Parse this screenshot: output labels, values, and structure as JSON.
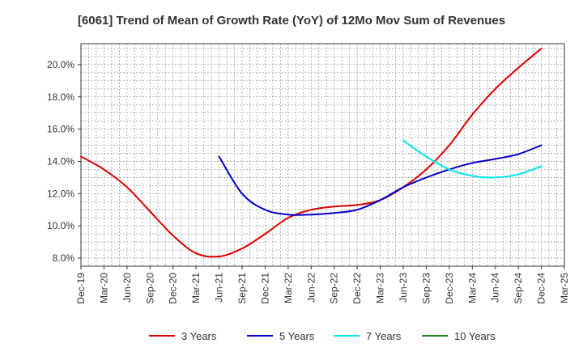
{
  "chart_data": {
    "type": "line",
    "title": "[6061]  Trend of Mean of Growth Rate (YoY) of 12Mo Mov Sum of Revenues",
    "xlabel": "",
    "ylabel": "",
    "ylim": [
      7.5,
      21.3
    ],
    "y_ticks": [
      8,
      10,
      12,
      14,
      16,
      18,
      20
    ],
    "y_tick_labels": [
      "8.0%",
      "10.0%",
      "12.0%",
      "14.0%",
      "16.0%",
      "18.0%",
      "20.0%"
    ],
    "x_tick_labels": [
      "Dec-19",
      "Mar-20",
      "Jun-20",
      "Sep-20",
      "Dec-20",
      "Mar-21",
      "Jun-21",
      "Sep-21",
      "Dec-21",
      "Mar-22",
      "Jun-22",
      "Sep-22",
      "Dec-22",
      "Mar-23",
      "Jun-23",
      "Sep-23",
      "Dec-23",
      "Mar-24",
      "Jun-24",
      "Sep-24",
      "Dec-24",
      "Mar-25"
    ],
    "grid": true,
    "legend_position": "bottom",
    "series": [
      {
        "name": "3 Years",
        "color": "#dd0000",
        "points": [
          [
            0,
            14.3
          ],
          [
            1,
            13.5
          ],
          [
            2,
            12.4
          ],
          [
            3,
            10.9
          ],
          [
            4,
            9.4
          ],
          [
            5,
            8.3
          ],
          [
            6,
            8.1
          ],
          [
            7,
            8.6
          ],
          [
            8,
            9.5
          ],
          [
            9,
            10.5
          ],
          [
            10,
            11.0
          ],
          [
            11,
            11.2
          ],
          [
            12,
            11.3
          ],
          [
            13,
            11.6
          ],
          [
            14,
            12.4
          ],
          [
            15,
            13.5
          ],
          [
            16,
            15.0
          ],
          [
            17,
            16.9
          ],
          [
            18,
            18.5
          ],
          [
            19,
            19.8
          ],
          [
            20,
            21.0
          ]
        ]
      },
      {
        "name": "5 Years",
        "color": "#0000cc",
        "points": [
          [
            6,
            14.3
          ],
          [
            7,
            12.0
          ],
          [
            8,
            11.0
          ],
          [
            9,
            10.7
          ],
          [
            10,
            10.7
          ],
          [
            11,
            10.8
          ],
          [
            12,
            11.0
          ],
          [
            13,
            11.6
          ],
          [
            14,
            12.4
          ],
          [
            15,
            13.0
          ],
          [
            16,
            13.5
          ],
          [
            17,
            13.9
          ],
          [
            18,
            14.15
          ],
          [
            19,
            14.45
          ],
          [
            20,
            15.0
          ]
        ]
      },
      {
        "name": "7 Years",
        "color": "#00e5ee",
        "points": [
          [
            14,
            15.3
          ],
          [
            15,
            14.3
          ],
          [
            16,
            13.5
          ],
          [
            17,
            13.1
          ],
          [
            18,
            13.0
          ],
          [
            19,
            13.2
          ],
          [
            20,
            13.7
          ]
        ]
      },
      {
        "name": "10 Years",
        "color": "#228b22",
        "points": []
      }
    ]
  }
}
